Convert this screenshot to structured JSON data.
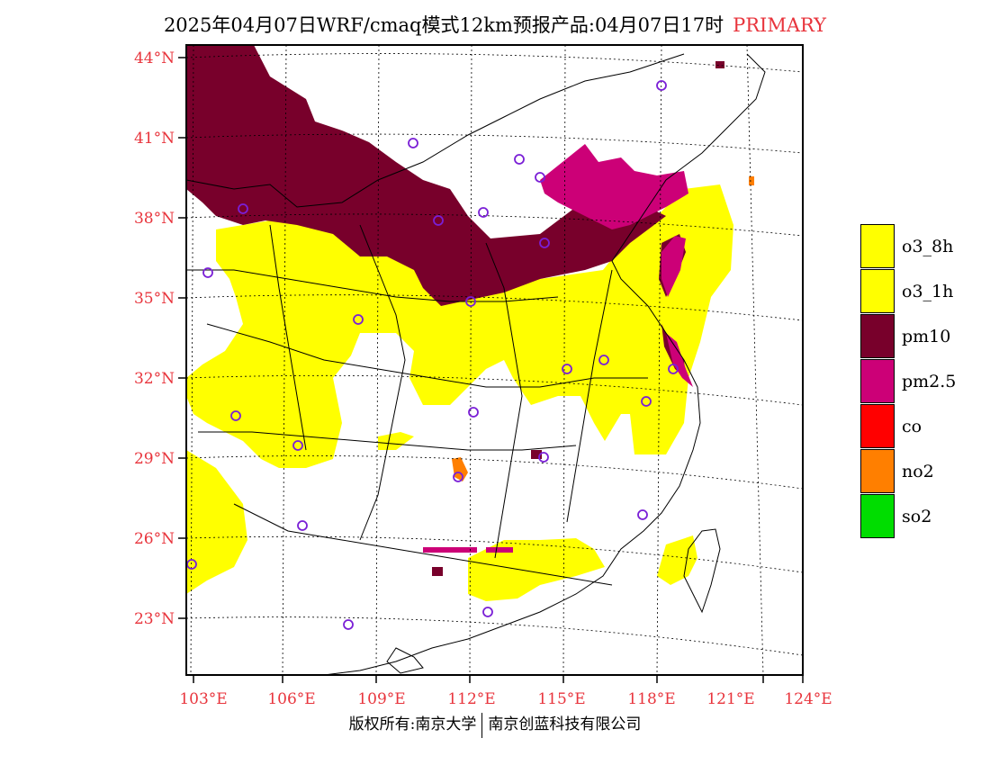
{
  "header": {
    "title": "2025年04月07日WRF/cmaq模式12km预报产品:04月07日17时",
    "tag": "PRIMARY"
  },
  "map": {
    "lat_labels": [
      "44°N",
      "41°N",
      "38°N",
      "35°N",
      "32°N",
      "29°N",
      "26°N",
      "23°N"
    ],
    "lon_labels": [
      "103°E",
      "106°E",
      "109°E",
      "112°E",
      "115°E",
      "118°E",
      "121°E",
      "124°E"
    ],
    "label_color": "#e8343c",
    "region": "East/Central China, Taiwan"
  },
  "legend": {
    "items": [
      {
        "label": "o3_8h",
        "color": "#ffff00"
      },
      {
        "label": "o3_1h",
        "color": "#ffff00"
      },
      {
        "label": "pm10",
        "color": "#78002b"
      },
      {
        "label": "pm2.5",
        "color": "#cc0077"
      },
      {
        "label": "co",
        "color": "#ff0000"
      },
      {
        "label": "no2",
        "color": "#ff7f00"
      },
      {
        "label": "so2",
        "color": "#00dd00"
      }
    ]
  },
  "footer": {
    "left": "版权所有:南京大学",
    "right": "南京创蓝科技有限公司"
  }
}
